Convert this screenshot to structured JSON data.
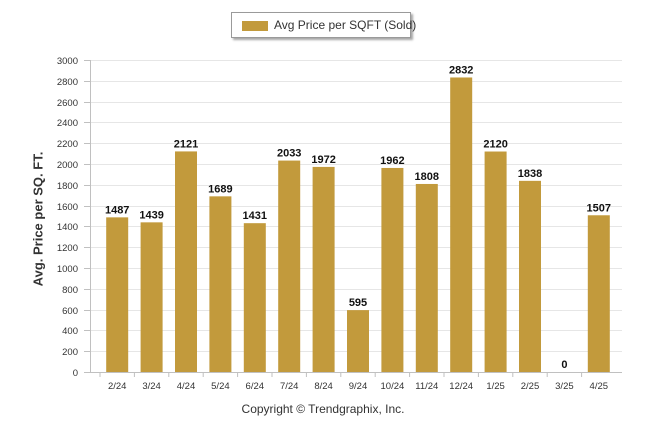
{
  "legend": {
    "label": "Avg Price per SQFT (Sold)"
  },
  "footer": {
    "copyright": "Copyright © Trendgraphix, Inc."
  },
  "colors": {
    "bar": "#c29a3c",
    "grid": "#e6e6e6",
    "axis": "#c0c0c0",
    "text": "#333333"
  },
  "chart_data": {
    "type": "bar",
    "title": "",
    "xlabel": "",
    "ylabel": "Avg. Price per SQ. FT.",
    "categories": [
      "2/24",
      "3/24",
      "4/24",
      "5/24",
      "6/24",
      "7/24",
      "8/24",
      "9/24",
      "10/24",
      "11/24",
      "12/24",
      "1/25",
      "2/25",
      "3/25",
      "4/25"
    ],
    "series": [
      {
        "name": "Avg Price per SQFT (Sold)",
        "values": [
          1487,
          1439,
          2121,
          1689,
          1431,
          2033,
          1972,
          595,
          1962,
          1808,
          2832,
          2120,
          1838,
          0,
          1507
        ]
      }
    ],
    "ylim": [
      0,
      3000
    ],
    "yticks": [
      0,
      200,
      400,
      600,
      800,
      1000,
      1200,
      1400,
      1600,
      1800,
      2000,
      2200,
      2400,
      2600,
      2800,
      3000
    ],
    "grid": true,
    "legend_position": "top-center"
  }
}
